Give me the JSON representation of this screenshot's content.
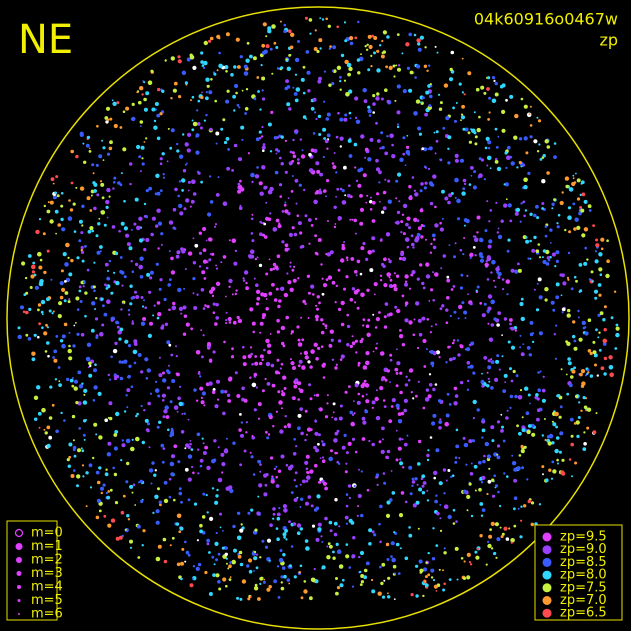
{
  "corner_label": "NE",
  "header": {
    "frame_id": "04k60916o0467w",
    "quantity": "zp"
  },
  "magnitude_legend": {
    "entries": [
      "m=0",
      "m=1",
      "m=2",
      "m=3",
      "m=4",
      "m=5",
      "m=6"
    ]
  },
  "zp_legend": {
    "entries": [
      {
        "label": "zp=9.5",
        "color": "#e040ff"
      },
      {
        "label": "zp=9.0",
        "color": "#9a40ff"
      },
      {
        "label": "zp=8.5",
        "color": "#3a5cff"
      },
      {
        "label": "zp=8.0",
        "color": "#30d8ff"
      },
      {
        "label": "zp=7.5",
        "color": "#c8f040"
      },
      {
        "label": "zp=7.0",
        "color": "#ff9a30"
      },
      {
        "label": "zp=6.5",
        "color": "#ff4a50"
      }
    ]
  }
}
